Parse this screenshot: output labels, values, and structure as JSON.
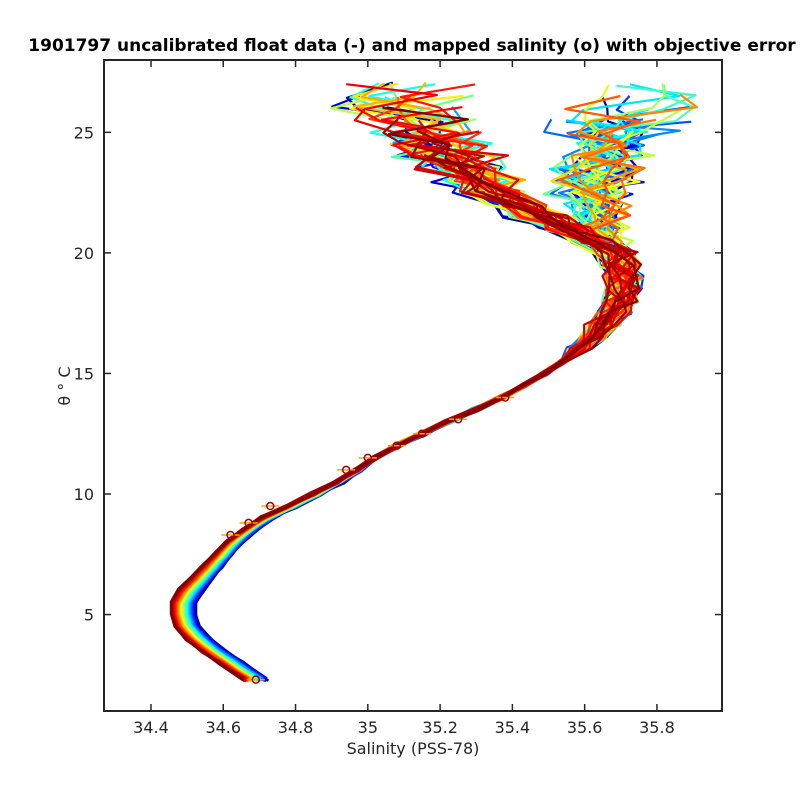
{
  "chart_data": {
    "type": "line",
    "title": "1901797 uncalibrated float data (-) and mapped salinity (o) with objective error",
    "xlabel": "Salinity (PSS-78)",
    "ylabel": "θ ° C",
    "xlim": [
      34.27,
      35.98
    ],
    "ylim": [
      1.0,
      28.0
    ],
    "x_ticks": [
      34.4,
      34.6,
      34.8,
      35,
      35.2,
      35.4,
      35.6,
      35.8
    ],
    "x_tick_labels": [
      "34.4",
      "34.6",
      "34.8",
      "35",
      "35.2",
      "35.4",
      "35.6",
      "35.8"
    ],
    "y_ticks": [
      5,
      10,
      15,
      20,
      25
    ],
    "y_tick_labels": [
      "5",
      "10",
      "15",
      "20",
      "25"
    ],
    "grid": false,
    "legend": "none",
    "colormap": "jet (early profiles dark blue to late profiles dark red)",
    "profile_count": 90,
    "mean_profile": {
      "theta": [
        2.3,
        3.0,
        3.5,
        4.0,
        4.5,
        5.0,
        5.5,
        6.0,
        6.5,
        7.0,
        7.5,
        8.0,
        8.5,
        9.0,
        9.5,
        10.0,
        10.5,
        11.0,
        11.5,
        12.0,
        12.5,
        13.0,
        13.5,
        14.0,
        14.5,
        15.0,
        15.5,
        16.0,
        16.5,
        17.0,
        17.5,
        18.0,
        18.5,
        19.0,
        19.5,
        20.0,
        20.5,
        21.0,
        21.5,
        22.0,
        22.5,
        23.0,
        23.5,
        24.0,
        24.5,
        25.0,
        25.5,
        26.0,
        26.5,
        27.0
      ],
      "salinity": [
        34.69,
        34.62,
        34.57,
        34.53,
        34.5,
        34.49,
        34.49,
        34.51,
        34.54,
        34.57,
        34.6,
        34.63,
        34.67,
        34.72,
        34.79,
        34.86,
        34.92,
        34.97,
        35.02,
        35.08,
        35.15,
        35.22,
        35.3,
        35.37,
        35.43,
        35.49,
        35.54,
        35.58,
        35.62,
        35.65,
        35.68,
        35.7,
        35.71,
        35.71,
        35.7,
        35.68,
        35.64,
        35.6,
        35.56,
        35.52,
        35.49,
        35.47,
        35.45,
        35.44,
        35.43,
        35.42,
        35.42,
        35.42,
        35.42,
        35.42
      ]
    },
    "mapped_salinity_points": [
      {
        "theta": 2.3,
        "salinity": 34.69
      },
      {
        "theta": 8.3,
        "salinity": 34.62
      },
      {
        "theta": 8.8,
        "salinity": 34.67
      },
      {
        "theta": 9.5,
        "salinity": 34.73
      },
      {
        "theta": 11.0,
        "salinity": 34.94
      },
      {
        "theta": 11.5,
        "salinity": 35.0
      },
      {
        "theta": 12.0,
        "salinity": 35.08
      },
      {
        "theta": 12.5,
        "salinity": 35.15
      },
      {
        "theta": 13.1,
        "salinity": 35.25
      },
      {
        "theta": 14.0,
        "salinity": 35.38
      }
    ],
    "surface_spread": {
      "theta_top": 27.5,
      "salinity_min": 34.98,
      "salinity_max": 35.9
    }
  }
}
